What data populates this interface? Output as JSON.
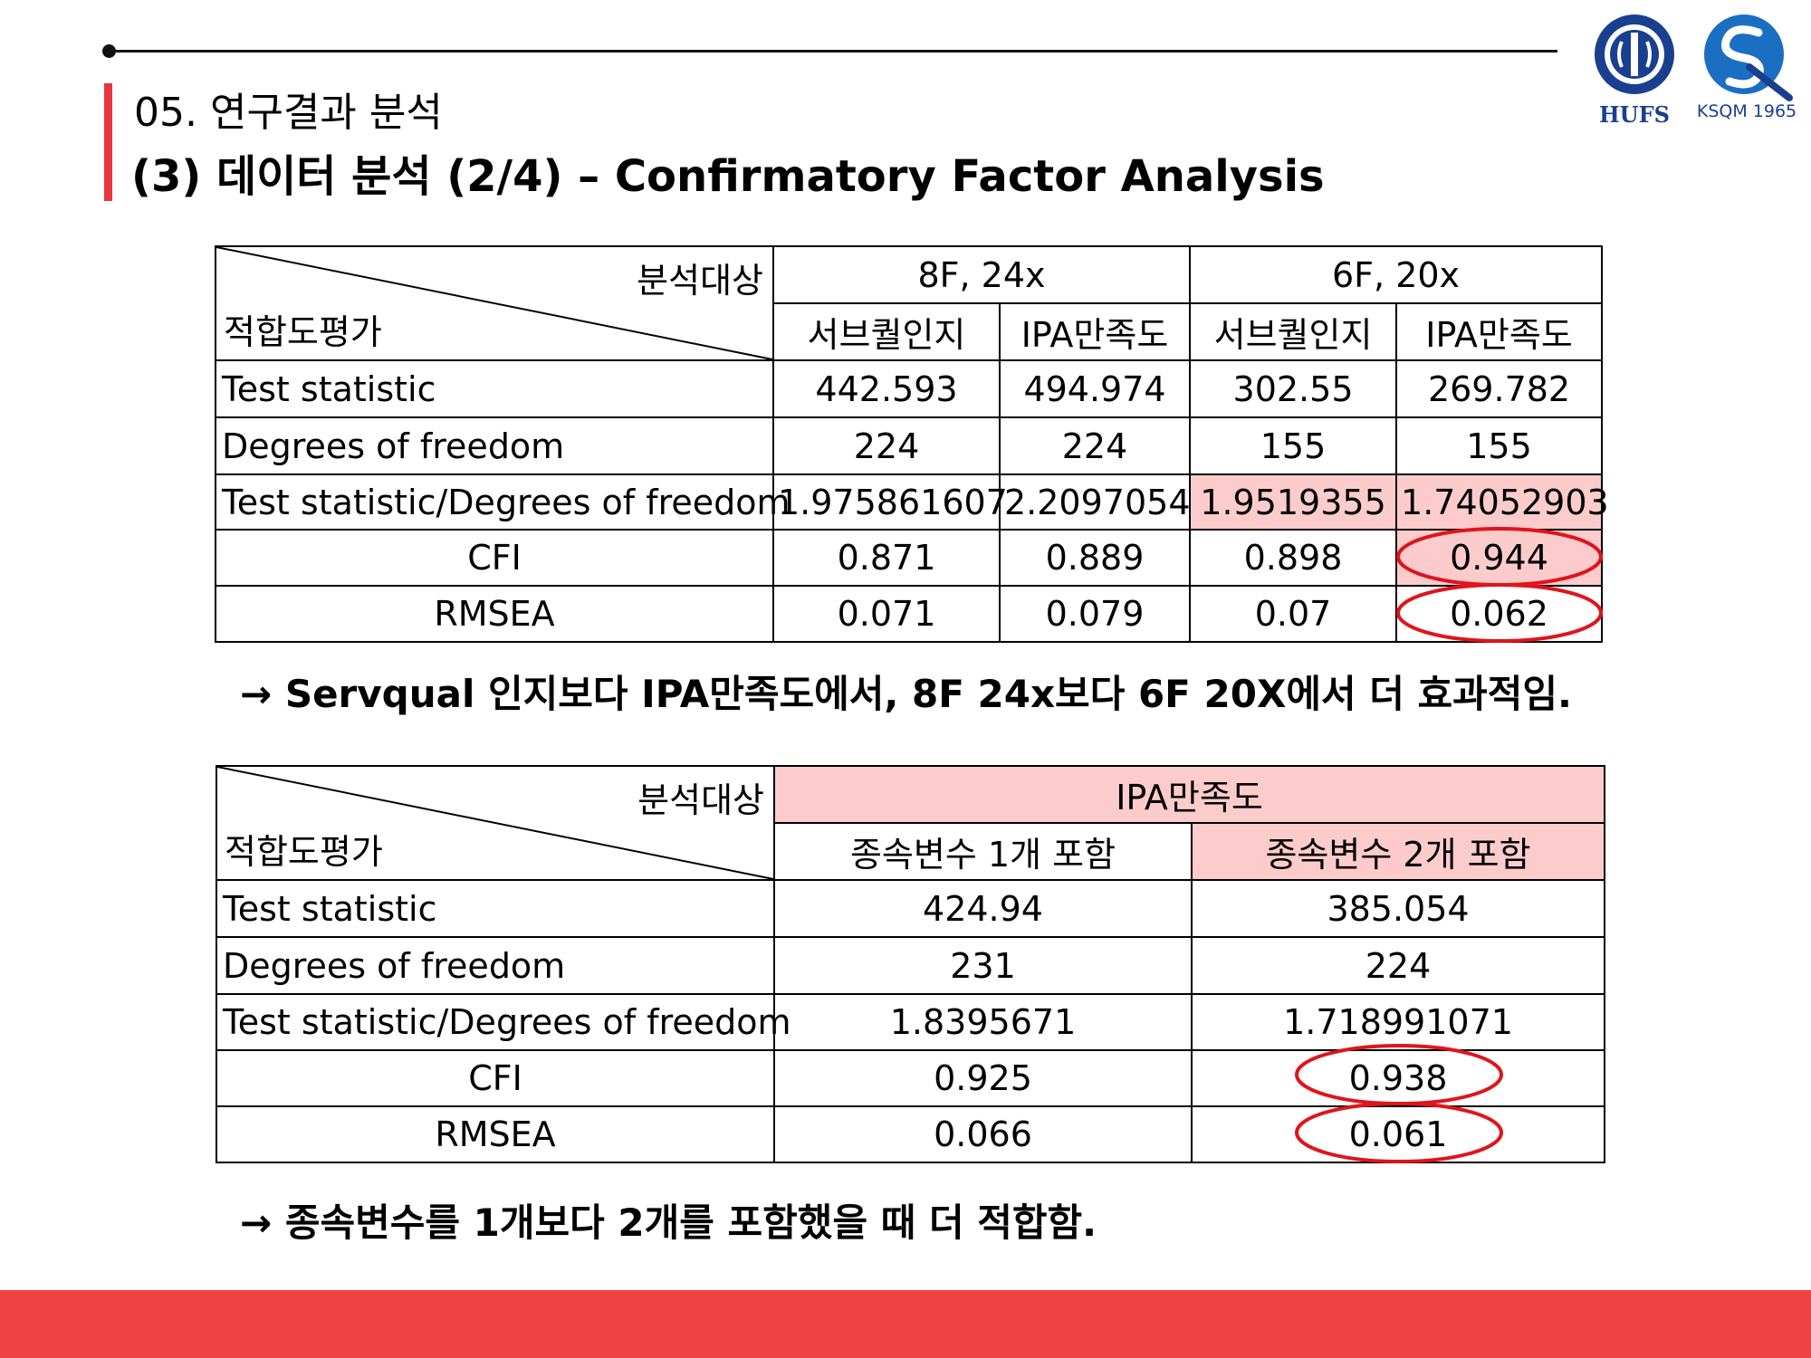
{
  "header": {
    "section_label": "05. 연구결과 분석",
    "title": "(3) 데이터 분석 (2/4) – Confirmatory Factor Analysis"
  },
  "logos": {
    "hufs_text": "HUFS",
    "ksqm_text": "KSQM 1965"
  },
  "table1": {
    "corner_top": "분석대상",
    "corner_bottom": "적합도평가",
    "groups": [
      "8F, 24x",
      "6F, 20x"
    ],
    "subheaders": [
      "서브퀄인지",
      "IPA만족도",
      "서브퀄인지",
      "IPA만족도"
    ],
    "rows": [
      {
        "label": "Test statistic",
        "values": [
          "442.593",
          "494.974",
          "302.55",
          "269.782"
        ]
      },
      {
        "label": "Degrees of freedom",
        "values": [
          "224",
          "224",
          "155",
          "155"
        ]
      },
      {
        "label": "Test statistic/Degrees of freedom",
        "values": [
          "1.975861607",
          "2.2097054",
          "1.9519355",
          "1.74052903"
        ]
      },
      {
        "label": "CFI",
        "values": [
          "0.871",
          "0.889",
          "0.898",
          "0.944"
        ]
      },
      {
        "label": "RMSEA",
        "values": [
          "0.071",
          "0.079",
          "0.07",
          "0.062"
        ]
      }
    ]
  },
  "note1": "→ Servqual 인지보다 IPA만족도에서, 8F 24x보다 6F 20X에서 더 효과적임.",
  "table2": {
    "corner_top": "분석대상",
    "corner_bottom": "적합도평가",
    "group": "IPA만족도",
    "subheaders": [
      "종속변수 1개 포함",
      "종속변수 2개 포함"
    ],
    "rows": [
      {
        "label": "Test statistic",
        "values": [
          "424.94",
          "385.054"
        ]
      },
      {
        "label": "Degrees of freedom",
        "values": [
          "231",
          "224"
        ]
      },
      {
        "label": "Test statistic/Degrees of freedom",
        "values": [
          "1.8395671",
          "1.718991071"
        ]
      },
      {
        "label": "CFI",
        "values": [
          "0.925",
          "0.938"
        ]
      },
      {
        "label": "RMSEA",
        "values": [
          "0.066",
          "0.061"
        ]
      }
    ]
  },
  "note2": "→ 종속변수를 1개보다 2개를 포함했을 때 더 적합함.",
  "colors": {
    "accent": "#e8363c",
    "highlight": "#fccccc",
    "oval": "#e0141b",
    "logo_blue": "#1a3f8f"
  }
}
